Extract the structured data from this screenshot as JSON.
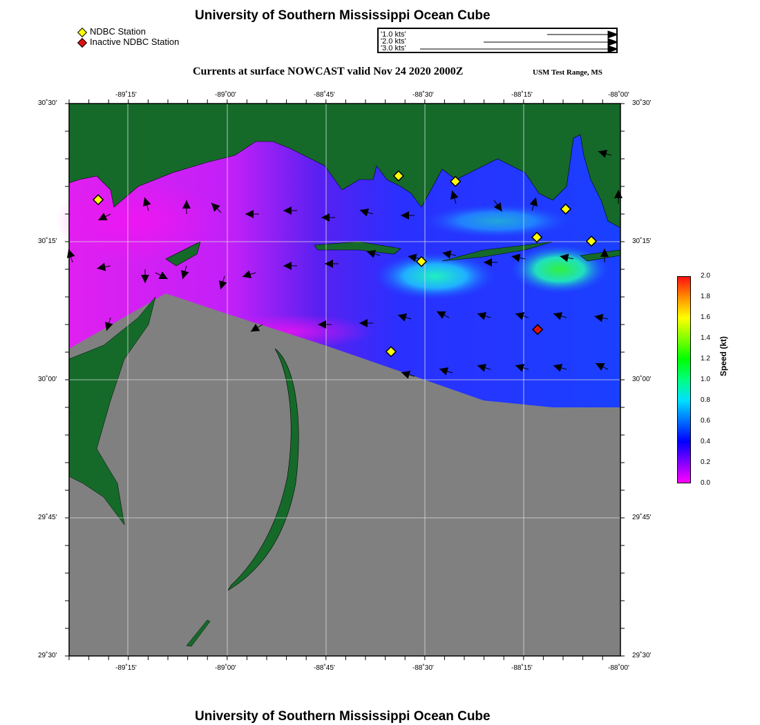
{
  "header": {
    "title": "University of Southern Mississippi Ocean Cube",
    "subtitle": "Currents at surface NOWCAST valid Nov 24 2020 2000Z",
    "region": "USM Test Range, MS",
    "footer": "University of Southern Mississippi Ocean Cube"
  },
  "legend": {
    "station": "NDBC Station",
    "inactive": "Inactive NDBC Station",
    "station_color": "#ffff00",
    "inactive_color": "#dd1111"
  },
  "vector_scale": [
    "'1.0 kts'",
    "'2.0 kts'",
    "'3.0 kts'"
  ],
  "axes": {
    "lon_ticks": [
      "-89˚15'",
      "-89˚00'",
      "-88˚45'",
      "-88˚30'",
      "-88˚15'",
      "-88˚00'"
    ],
    "lat_ticks": [
      "30˚30'",
      "30˚15'",
      "30˚00'",
      "29˚45'",
      "29˚30'"
    ]
  },
  "colorbar": {
    "label": "Speed (kt)",
    "ticks": [
      "2.0",
      "1.8",
      "1.6",
      "1.4",
      "1.2",
      "1.0",
      "0.8",
      "0.6",
      "0.4",
      "0.2",
      "0.0"
    ],
    "range": [
      0,
      2.0
    ]
  },
  "stations": [
    {
      "lon": -89.325,
      "lat": 30.326,
      "active": true
    },
    {
      "lon": -88.565,
      "lat": 30.369,
      "active": true
    },
    {
      "lon": -88.421,
      "lat": 30.359,
      "active": true
    },
    {
      "lon": -88.142,
      "lat": 30.309,
      "active": true
    },
    {
      "lon": -88.215,
      "lat": 30.258,
      "active": true
    },
    {
      "lon": -88.077,
      "lat": 30.251,
      "active": true
    },
    {
      "lon": -88.507,
      "lat": 30.214,
      "active": true
    },
    {
      "lon": -88.584,
      "lat": 30.051,
      "active": true
    },
    {
      "lon": -88.213,
      "lat": 30.091,
      "active": false
    }
  ]
}
